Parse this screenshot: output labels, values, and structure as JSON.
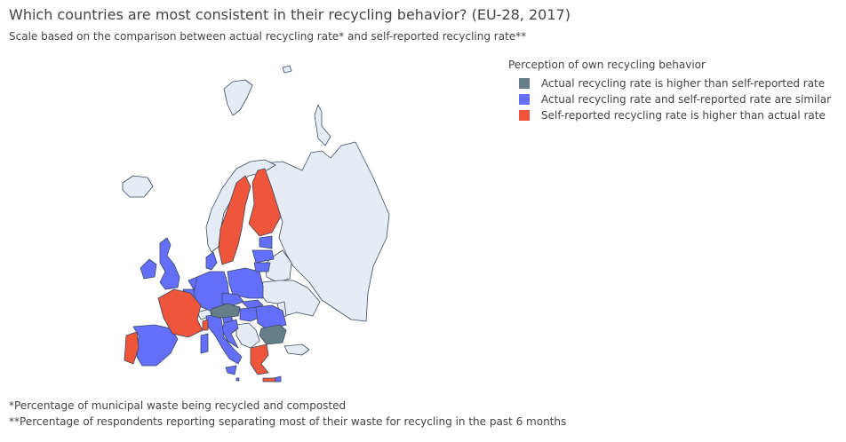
{
  "header": {
    "title": "Which countries are most consistent in their recycling behavior? (EU-28, 2017)",
    "subtitle": "Scale based on the comparison between actual recycling rate* and self-reported recycling rate**"
  },
  "legend": {
    "title": "Perception of own recycling behavior",
    "items": [
      {
        "label": "Actual recycling rate is higher than self-reported rate",
        "color": "#657e8a"
      },
      {
        "label": "Actual recycling rate and self-reported rate are similar",
        "color": "#636efa"
      },
      {
        "label": "Self-reported recycling rate is higher than actual rate",
        "color": "#ef553b"
      }
    ]
  },
  "map": {
    "non_eu_color": "#e5ecf6",
    "border_color": "#3d4a5e",
    "countries": {
      "actual_higher": [
        "Austria",
        "Bulgaria"
      ],
      "similar": [
        "Ireland",
        "United Kingdom",
        "Denmark",
        "Netherlands",
        "Belgium",
        "Luxembourg",
        "Germany",
        "Poland",
        "Czechia",
        "Slovakia",
        "Hungary",
        "Romania",
        "Slovenia",
        "Croatia",
        "Italy",
        "Spain",
        "Estonia",
        "Latvia",
        "Lithuania",
        "Malta",
        "Cyprus"
      ],
      "self_reported_higher": [
        "Sweden",
        "Finland",
        "France",
        "Portugal",
        "Greece"
      ]
    }
  },
  "notes": {
    "note1": "*Percentage of municipal waste being recycled and composted",
    "note2": "**Percentage of respondents reporting separating most of their waste for recycling in the past 6 months"
  }
}
